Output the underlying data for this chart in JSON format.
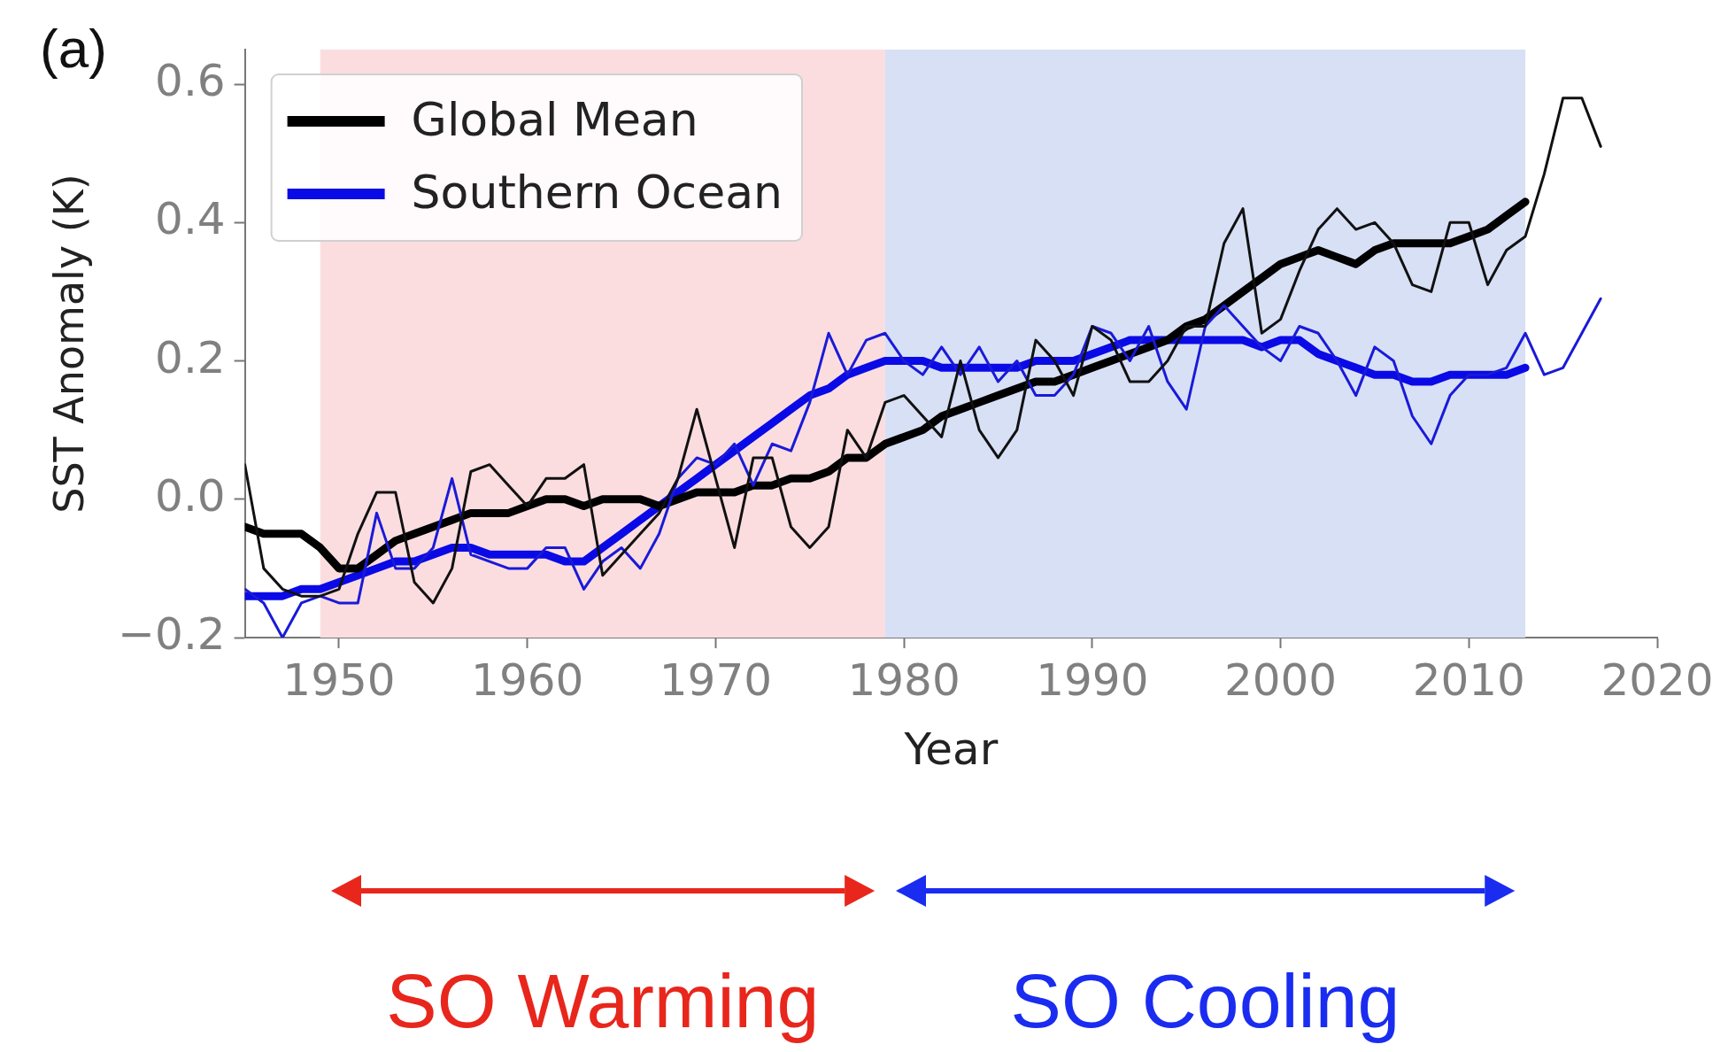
{
  "chart_data": {
    "type": "line",
    "xlabel": "Year",
    "ylabel": "SST Anomaly (K)",
    "xlim": [
      1945,
      2020
    ],
    "xticks": [
      1950,
      1960,
      1970,
      1980,
      1990,
      2000,
      2010,
      2020
    ],
    "ylim": [
      -0.2,
      0.65
    ],
    "yticks": [
      {
        "value": -0.2,
        "label": "−0.2"
      },
      {
        "value": 0,
        "label": "0.0"
      },
      {
        "value": 0.2,
        "label": "0.2"
      },
      {
        "value": 0.4,
        "label": "0.4"
      },
      {
        "value": 0.6,
        "label": "0.6"
      }
    ],
    "grid": false,
    "legend": "top left",
    "marker": "none",
    "x": [
      1945,
      1946,
      1947,
      1948,
      1949,
      1950,
      1951,
      1952,
      1953,
      1954,
      1955,
      1956,
      1957,
      1958,
      1959,
      1960,
      1961,
      1962,
      1963,
      1964,
      1965,
      1966,
      1967,
      1968,
      1969,
      1970,
      1971,
      1972,
      1973,
      1974,
      1975,
      1976,
      1977,
      1978,
      1979,
      1980,
      1981,
      1982,
      1983,
      1984,
      1985,
      1986,
      1987,
      1988,
      1989,
      1990,
      1991,
      1992,
      1993,
      1994,
      1995,
      1996,
      1997,
      1998,
      1999,
      2000,
      2001,
      2002,
      2003,
      2004,
      2005,
      2006,
      2007,
      2008,
      2009,
      2010,
      2011,
      2012,
      2013,
      2014,
      2015,
      2016,
      2017
    ],
    "series": [
      {
        "color": "#111111",
        "values": [
          0.05,
          -0.1,
          -0.13,
          -0.14,
          -0.14,
          -0.13,
          -0.05,
          0.01,
          0.01,
          -0.12,
          -0.15,
          -0.1,
          0.04,
          0.05,
          0.02,
          -0.01,
          0.03,
          0.03,
          0.05,
          -0.11,
          -0.08,
          -0.05,
          -0.02,
          0.03,
          0.13,
          0.03,
          -0.07,
          0.06,
          0.06,
          -0.04,
          -0.07,
          -0.04,
          0.1,
          0.06,
          0.14,
          0.15,
          0.12,
          0.09,
          0.2,
          0.1,
          0.06,
          0.1,
          0.23,
          0.2,
          0.15,
          0.25,
          0.23,
          0.17,
          0.17,
          0.2,
          0.25,
          0.25,
          0.37,
          0.42,
          0.24,
          0.26,
          0.33,
          0.39,
          0.42,
          0.39,
          0.4,
          0.37,
          0.31,
          0.3,
          0.4,
          0.4,
          0.31,
          0.36,
          0.38,
          0.47,
          0.58,
          0.58,
          0.51
        ]
      },
      {
        "color": "#1a1ad8",
        "values": [
          -0.13,
          -0.15,
          -0.2,
          -0.15,
          -0.14,
          -0.15,
          -0.15,
          -0.02,
          -0.1,
          -0.1,
          -0.07,
          0.03,
          -0.08,
          -0.09,
          -0.1,
          -0.1,
          -0.07,
          -0.07,
          -0.13,
          -0.09,
          -0.07,
          -0.1,
          -0.05,
          0.03,
          0.06,
          0.05,
          0.08,
          0.02,
          0.08,
          0.07,
          0.14,
          0.24,
          0.18,
          0.23,
          0.24,
          0.2,
          0.18,
          0.22,
          0.18,
          0.22,
          0.17,
          0.2,
          0.15,
          0.15,
          0.18,
          0.25,
          0.24,
          0.2,
          0.25,
          0.17,
          0.13,
          0.25,
          0.28,
          0.25,
          0.22,
          0.2,
          0.25,
          0.24,
          0.2,
          0.15,
          0.22,
          0.2,
          0.12,
          0.08,
          0.15,
          0.18,
          0.18,
          0.19,
          0.24,
          0.18,
          0.19,
          0.24,
          0.29
        ]
      },
      {
        "name": "Global Mean",
        "color": "#000000",
        "values": [
          -0.04,
          -0.05,
          -0.05,
          -0.05,
          -0.07,
          -0.1,
          -0.1,
          -0.08,
          -0.06,
          -0.05,
          -0.04,
          -0.03,
          -0.02,
          -0.02,
          -0.02,
          -0.01,
          0,
          0,
          -0.01,
          0,
          0,
          0,
          -0.01,
          0,
          0.01,
          0.01,
          0.01,
          0.02,
          0.02,
          0.03,
          0.03,
          0.04,
          0.06,
          0.06,
          0.08,
          0.09,
          0.1,
          0.12,
          0.13,
          0.14,
          0.15,
          0.16,
          0.17,
          0.17,
          0.18,
          0.19,
          0.2,
          0.21,
          0.22,
          0.23,
          0.25,
          0.26,
          0.28,
          0.3,
          0.32,
          0.34,
          0.35,
          0.36,
          0.35,
          0.34,
          0.36,
          0.37,
          0.37,
          0.37,
          0.37,
          0.38,
          0.39,
          0.41,
          0.43,
          null,
          null,
          null,
          null
        ]
      },
      {
        "name": "Southern Ocean",
        "color": "#0a0ae6",
        "values": [
          -0.14,
          -0.14,
          -0.14,
          -0.13,
          -0.13,
          -0.12,
          -0.11,
          -0.1,
          -0.09,
          -0.09,
          -0.08,
          -0.07,
          -0.07,
          -0.08,
          -0.08,
          -0.08,
          -0.08,
          -0.09,
          -0.09,
          -0.07,
          -0.05,
          -0.03,
          -0.01,
          0.01,
          0.03,
          0.05,
          0.07,
          0.09,
          0.11,
          0.13,
          0.15,
          0.16,
          0.18,
          0.19,
          0.2,
          0.2,
          0.2,
          0.19,
          0.19,
          0.19,
          0.19,
          0.19,
          0.2,
          0.2,
          0.2,
          0.21,
          0.22,
          0.23,
          0.23,
          0.23,
          0.23,
          0.23,
          0.23,
          0.23,
          0.22,
          0.23,
          0.23,
          0.21,
          0.2,
          0.19,
          0.18,
          0.18,
          0.17,
          0.17,
          0.18,
          0.18,
          0.18,
          0.18,
          0.19,
          null,
          null,
          null,
          null
        ]
      }
    ],
    "bands": [
      {
        "axis": "x",
        "from": 1949,
        "to": 1979,
        "color": "#fbdde0"
      },
      {
        "axis": "x",
        "from": 1979,
        "to": 2013,
        "color": "#d8e0f6"
      }
    ],
    "annotations": [
      "(a)",
      "SO Warming",
      "SO Cooling"
    ]
  }
}
